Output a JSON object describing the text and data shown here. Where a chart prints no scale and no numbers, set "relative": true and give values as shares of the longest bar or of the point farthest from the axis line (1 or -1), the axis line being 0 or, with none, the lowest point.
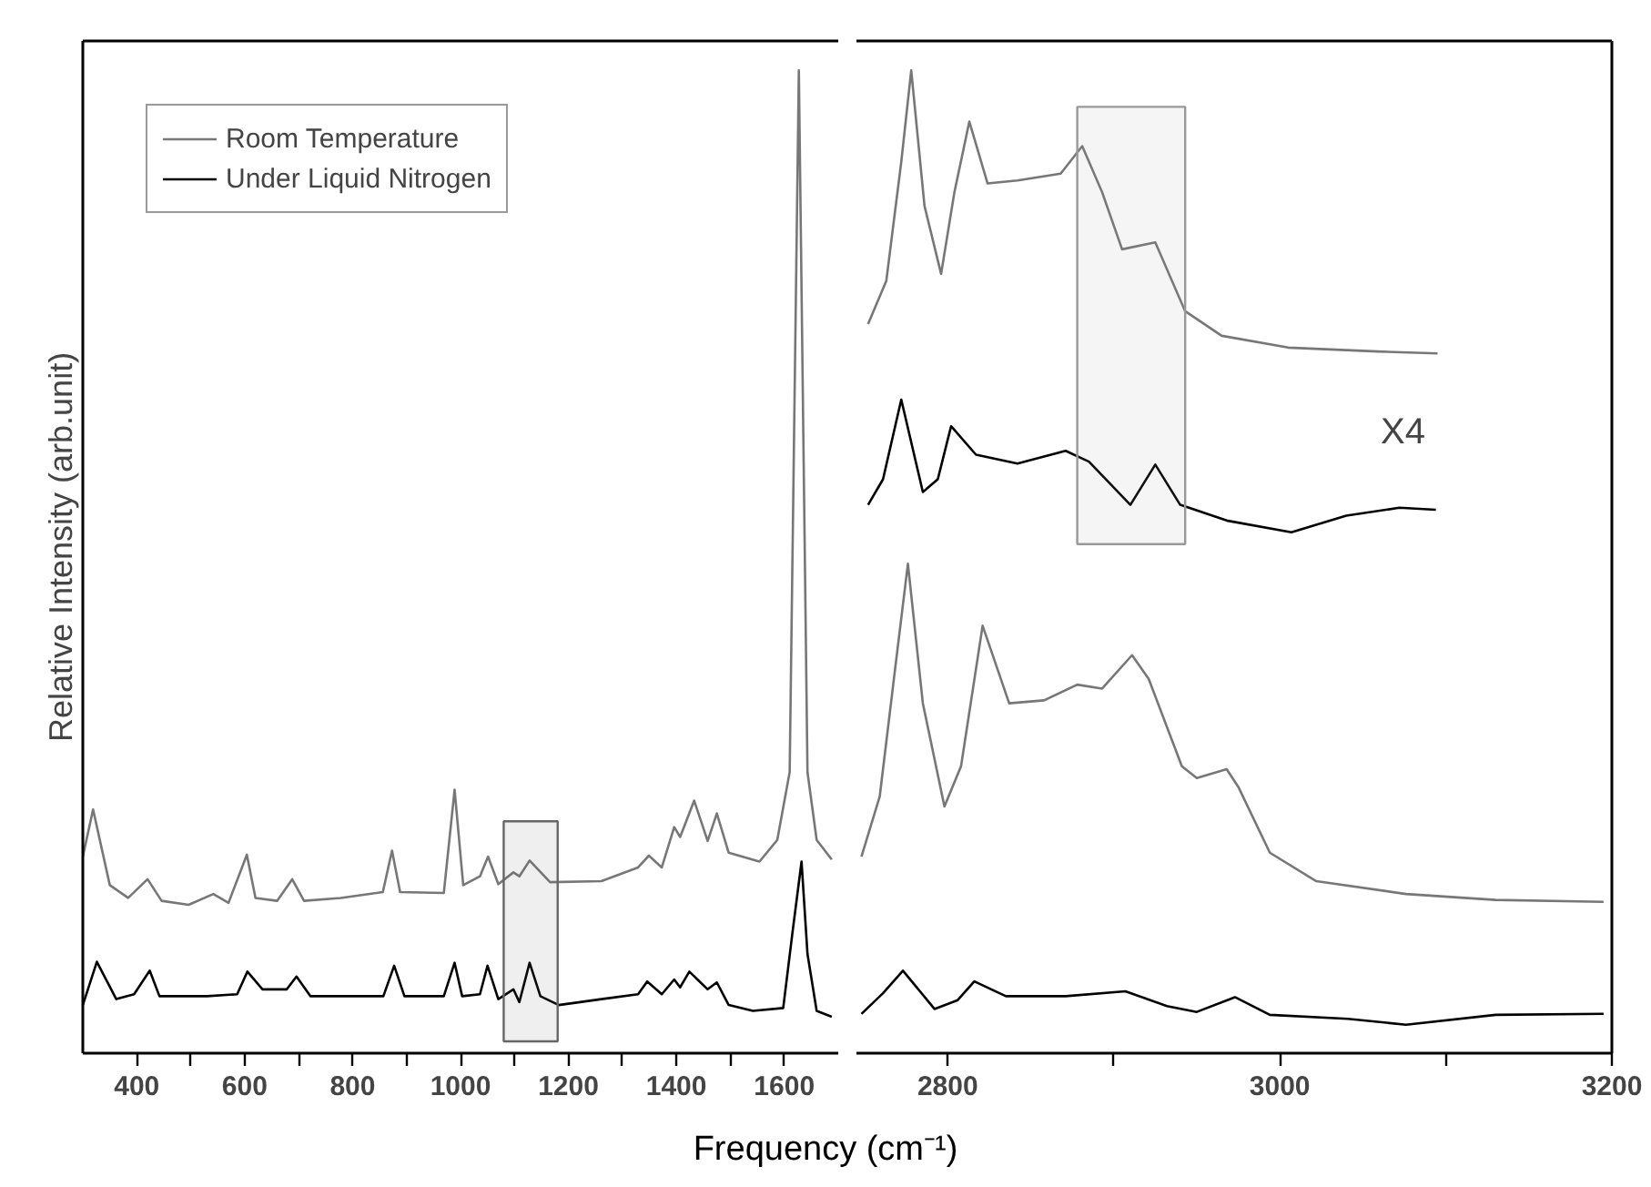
{
  "chart_data": [
    {
      "type": "line",
      "relative": true,
      "xlabel": "Frequency (cm⁻¹)",
      "ylabel": "Relative Intensity (arb.unit)",
      "legend": "top left",
      "xlim": [
        300,
        1700
      ],
      "xticks": [
        400,
        {
          "value": 500,
          "label": null
        },
        600,
        {
          "value": 700,
          "label": null
        },
        800,
        {
          "value": 900,
          "label": null
        },
        1000,
        {
          "value": 1100,
          "label": null
        },
        1200,
        {
          "value": 1300,
          "label": null
        },
        1400,
        {
          "value": 1500,
          "label": null
        },
        1600
      ],
      "bands": [
        {
          "axis": "x",
          "from": 1080,
          "to": 1180,
          "color": "#666666"
        }
      ],
      "series": [
        {
          "name": "Room Temperature",
          "color": "#777777",
          "x": [
            300,
            319,
            350,
            384,
            420,
            446,
            496,
            542,
            570,
            604,
            620,
            660,
            688,
            710,
            778,
            856,
            873,
            888,
            969,
            989,
            1005,
            1036,
            1051,
            1070,
            1098,
            1109,
            1128,
            1166,
            1261,
            1329,
            1349,
            1373,
            1396,
            1407,
            1433,
            1458,
            1475,
            1497,
            1554,
            1587,
            1610,
            1627,
            1643,
            1660,
            1688
          ],
          "values": [
            0.2,
            0.248,
            0.171,
            0.158,
            0.177,
            0.155,
            0.151,
            0.162,
            0.153,
            0.202,
            0.158,
            0.155,
            0.177,
            0.155,
            0.158,
            0.164,
            0.206,
            0.164,
            0.163,
            0.268,
            0.171,
            0.18,
            0.2,
            0.172,
            0.184,
            0.18,
            0.196,
            0.174,
            0.175,
            0.189,
            0.201,
            0.189,
            0.23,
            0.22,
            0.257,
            0.216,
            0.244,
            0.204,
            0.195,
            0.217,
            0.286,
            1.0,
            0.286,
            0.217,
            0.197
          ]
        },
        {
          "name": "Under Liquid Nitrogen",
          "color": "#000000",
          "x": [
            300,
            326,
            362,
            395,
            424,
            442,
            530,
            586,
            605,
            633,
            678,
            696,
            722,
            857,
            877,
            896,
            969,
            989,
            1003,
            1036,
            1050,
            1070,
            1098,
            1109,
            1128,
            1148,
            1182,
            1261,
            1329,
            1346,
            1373,
            1396,
            1407,
            1424,
            1458,
            1475,
            1497,
            1542,
            1598,
            1615,
            1632,
            1643,
            1660,
            1688
          ],
          "values": [
            0.049,
            0.093,
            0.055,
            0.06,
            0.084,
            0.058,
            0.058,
            0.06,
            0.083,
            0.065,
            0.065,
            0.078,
            0.058,
            0.058,
            0.089,
            0.058,
            0.058,
            0.092,
            0.058,
            0.06,
            0.089,
            0.055,
            0.065,
            0.052,
            0.092,
            0.058,
            0.049,
            0.055,
            0.06,
            0.073,
            0.06,
            0.075,
            0.067,
            0.083,
            0.065,
            0.072,
            0.049,
            0.043,
            0.046,
            0.122,
            0.195,
            0.101,
            0.043,
            0.037
          ]
        }
      ]
    },
    {
      "type": "line",
      "relative": true,
      "xlim": [
        2745,
        3200
      ],
      "xticks": [
        2800,
        {
          "value": 2900,
          "label": null
        },
        3000,
        {
          "value": 3100,
          "label": null
        },
        3200
      ],
      "annotations": [
        "X4"
      ],
      "bands": [
        {
          "axis": "x",
          "from": 2878,
          "to": 2943,
          "color": "#999999"
        }
      ],
      "series": [
        {
          "color": "#777777",
          "x": [
            2748,
            2759,
            2768,
            2776,
            2785,
            2798,
            2808,
            2821,
            2837,
            2858,
            2878,
            2893,
            2911,
            2921,
            2941,
            2950,
            2968,
            2975,
            2994,
            3022,
            3076,
            3130,
            3195
          ],
          "values": [
            0.2,
            0.261,
            0.387,
            0.498,
            0.356,
            0.251,
            0.292,
            0.435,
            0.356,
            0.359,
            0.375,
            0.371,
            0.405,
            0.381,
            0.292,
            0.28,
            0.289,
            0.271,
            0.204,
            0.175,
            0.162,
            0.156,
            0.154
          ]
        },
        {
          "color": "#000000",
          "x": [
            2748,
            2761,
            2773,
            2792,
            2806,
            2816,
            2835,
            2871,
            2907,
            2932,
            2950,
            2973,
            2994,
            3041,
            3076,
            3130,
            3195
          ],
          "values": [
            0.04,
            0.061,
            0.084,
            0.045,
            0.054,
            0.073,
            0.058,
            0.058,
            0.063,
            0.048,
            0.042,
            0.057,
            0.039,
            0.035,
            0.029,
            0.039,
            0.04
          ]
        },
        {
          "color": "#777777",
          "x": [
            2752,
            2763,
            2772,
            2778,
            2786,
            2796,
            2804,
            2813,
            2824,
            2842,
            2868,
            2881,
            2893,
            2905,
            2925,
            2943,
            2965,
            3005,
            3059,
            3095
          ],
          "values": [
            0.742,
            0.786,
            0.907,
            1.0,
            0.862,
            0.793,
            0.876,
            0.948,
            0.885,
            0.888,
            0.895,
            0.923,
            0.876,
            0.818,
            0.825,
            0.755,
            0.73,
            0.718,
            0.714,
            0.712
          ]
        },
        {
          "color": "#000000",
          "x": [
            2752,
            2761,
            2772,
            2785,
            2794,
            2802,
            2817,
            2842,
            2871,
            2885,
            2910,
            2925,
            2940,
            2968,
            3007,
            3040,
            3072,
            3094
          ],
          "values": [
            0.558,
            0.584,
            0.665,
            0.571,
            0.584,
            0.638,
            0.609,
            0.6,
            0.613,
            0.602,
            0.558,
            0.599,
            0.558,
            0.542,
            0.53,
            0.547,
            0.555,
            0.553
          ]
        }
      ]
    }
  ]
}
